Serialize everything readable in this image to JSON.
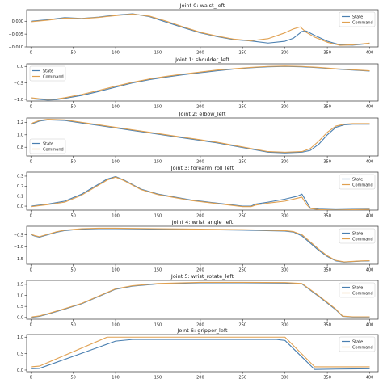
{
  "colors": {
    "state": "#4a7fb0",
    "command": "#e0a050",
    "axes": "#333333"
  },
  "chart_data": [
    {
      "type": "line",
      "title": "Joint 0: waist_left",
      "legend": "top-right",
      "xlim": [
        -5,
        410
      ],
      "ylim": [
        -0.01,
        0.0045
      ],
      "xticks": [
        0,
        50,
        100,
        150,
        200,
        250,
        300,
        350,
        400
      ],
      "xtick_labels": [
        "0",
        "50",
        "100",
        "150",
        "200",
        "250",
        "300",
        "350",
        "400"
      ],
      "yticks": [
        0.0,
        -0.005,
        -0.01
      ],
      "ytick_labels": [
        "0.000",
        "−0.005",
        "−0.010"
      ],
      "series": [
        {
          "name": "State",
          "x": [
            0,
            20,
            40,
            60,
            80,
            100,
            120,
            140,
            160,
            180,
            200,
            220,
            240,
            260,
            280,
            300,
            310,
            320,
            325,
            335,
            350,
            365,
            380,
            400
          ],
          "y": [
            0.0,
            0.0006,
            0.0014,
            0.0011,
            0.0016,
            0.0024,
            0.0029,
            0.0018,
            -0.0004,
            -0.0025,
            -0.0045,
            -0.006,
            -0.0072,
            -0.0077,
            -0.0085,
            -0.0078,
            -0.0066,
            -0.004,
            -0.0038,
            -0.0055,
            -0.0078,
            -0.0092,
            -0.0093,
            -0.0087
          ]
        },
        {
          "name": "Command",
          "x": [
            0,
            20,
            40,
            60,
            80,
            100,
            120,
            140,
            160,
            180,
            200,
            220,
            240,
            260,
            280,
            300,
            310,
            318,
            325,
            335,
            350,
            365,
            380,
            400
          ],
          "y": [
            -0.0002,
            0.0004,
            0.0012,
            0.001,
            0.0015,
            0.0022,
            0.0028,
            0.002,
            0.0,
            -0.0022,
            -0.0043,
            -0.0058,
            -0.007,
            -0.0076,
            -0.0068,
            -0.0045,
            -0.003,
            -0.0022,
            -0.0043,
            -0.0062,
            -0.0082,
            -0.0094,
            -0.0092,
            -0.0085
          ]
        }
      ]
    },
    {
      "type": "line",
      "title": "Joint 1: shoulder_left",
      "legend": "top-left",
      "xlim": [
        -5,
        410
      ],
      "ylim": [
        -1.05,
        0.08
      ],
      "xticks": [
        0,
        50,
        100,
        150,
        200,
        250,
        300,
        350,
        400
      ],
      "xtick_labels": [
        "0",
        "50",
        "100",
        "150",
        "200",
        "250",
        "300",
        "350",
        "400"
      ],
      "yticks": [
        0.0,
        -0.5,
        -1.0
      ],
      "ytick_labels": [
        "0.0",
        "−0.5",
        "−1.0"
      ],
      "series": [
        {
          "name": "State",
          "x": [
            0,
            10,
            20,
            30,
            40,
            60,
            80,
            100,
            120,
            140,
            160,
            180,
            200,
            220,
            240,
            260,
            280,
            300,
            320,
            340,
            360,
            380,
            400
          ],
          "y": [
            -0.98,
            -1.0,
            -1.02,
            -1.01,
            -0.97,
            -0.88,
            -0.76,
            -0.63,
            -0.5,
            -0.4,
            -0.32,
            -0.25,
            -0.19,
            -0.13,
            -0.08,
            -0.04,
            -0.01,
            0.0,
            -0.01,
            -0.04,
            -0.08,
            -0.11,
            -0.14
          ]
        },
        {
          "name": "Command",
          "x": [
            0,
            10,
            20,
            30,
            40,
            60,
            80,
            100,
            120,
            140,
            160,
            180,
            200,
            220,
            240,
            260,
            280,
            300,
            320,
            340,
            360,
            380,
            400
          ],
          "y": [
            -0.95,
            -0.98,
            -1.0,
            -0.99,
            -0.95,
            -0.85,
            -0.73,
            -0.6,
            -0.48,
            -0.38,
            -0.3,
            -0.23,
            -0.17,
            -0.11,
            -0.07,
            -0.03,
            0.0,
            0.01,
            0.0,
            -0.03,
            -0.07,
            -0.1,
            -0.13
          ]
        }
      ]
    },
    {
      "type": "line",
      "title": "Joint 2: elbow_left",
      "legend": "bottom-left",
      "xlim": [
        -5,
        410
      ],
      "ylim": [
        0.66,
        1.27
      ],
      "xticks": [
        0,
        50,
        100,
        150,
        200,
        250,
        300,
        350,
        400
      ],
      "xtick_labels": [
        "0",
        "50",
        "100",
        "150",
        "200",
        "250",
        "300",
        "350",
        "400"
      ],
      "yticks": [
        1.2,
        1.0,
        0.8
      ],
      "ytick_labels": [
        "1.2",
        "1.0",
        "0.8"
      ],
      "series": [
        {
          "name": "State",
          "x": [
            0,
            10,
            20,
            40,
            60,
            80,
            100,
            120,
            140,
            160,
            180,
            200,
            220,
            240,
            260,
            280,
            300,
            320,
            330,
            340,
            350,
            360,
            370,
            380,
            400
          ],
          "y": [
            1.17,
            1.22,
            1.24,
            1.23,
            1.19,
            1.15,
            1.11,
            1.07,
            1.03,
            0.99,
            0.95,
            0.91,
            0.87,
            0.82,
            0.77,
            0.72,
            0.71,
            0.72,
            0.75,
            0.85,
            1.0,
            1.12,
            1.16,
            1.17,
            1.17
          ]
        },
        {
          "name": "Command",
          "x": [
            0,
            10,
            20,
            40,
            60,
            80,
            100,
            120,
            140,
            160,
            180,
            200,
            220,
            240,
            260,
            280,
            300,
            320,
            330,
            340,
            350,
            360,
            370,
            380,
            400
          ],
          "y": [
            1.18,
            1.23,
            1.25,
            1.24,
            1.2,
            1.16,
            1.12,
            1.08,
            1.04,
            1.0,
            0.96,
            0.92,
            0.88,
            0.83,
            0.78,
            0.73,
            0.72,
            0.73,
            0.78,
            0.9,
            1.04,
            1.14,
            1.17,
            1.18,
            1.18
          ]
        }
      ]
    },
    {
      "type": "line",
      "title": "Joint 3: forearm_roll_left",
      "legend": "top-right",
      "xlim": [
        -5,
        410
      ],
      "ylim": [
        -0.04,
        0.34
      ],
      "xticks": [
        0,
        50,
        100,
        150,
        200,
        250,
        300,
        350,
        400
      ],
      "xtick_labels": [
        "0",
        "50",
        "100",
        "150",
        "200",
        "250",
        "300",
        "350",
        "400"
      ],
      "yticks": [
        0.3,
        0.2,
        0.1,
        0.0
      ],
      "ytick_labels": [
        "0.3",
        "0.2",
        "0.1",
        "0.0"
      ],
      "series": [
        {
          "name": "State",
          "x": [
            0,
            10,
            20,
            40,
            60,
            80,
            90,
            100,
            110,
            130,
            150,
            170,
            190,
            210,
            230,
            250,
            260,
            265,
            280,
            300,
            315,
            320,
            325,
            330,
            340,
            360,
            380,
            400
          ],
          "y": [
            0.0,
            0.01,
            0.02,
            0.05,
            0.12,
            0.22,
            0.27,
            0.295,
            0.26,
            0.17,
            0.12,
            0.09,
            0.06,
            0.04,
            0.02,
            0.0,
            0.0,
            0.02,
            0.04,
            0.07,
            0.1,
            0.12,
            0.05,
            -0.02,
            -0.03,
            -0.035,
            -0.032,
            -0.03
          ]
        },
        {
          "name": "Command",
          "x": [
            0,
            10,
            20,
            40,
            60,
            80,
            90,
            100,
            110,
            130,
            150,
            170,
            190,
            210,
            230,
            250,
            260,
            265,
            280,
            300,
            315,
            320,
            325,
            330,
            340,
            360,
            380,
            400
          ],
          "y": [
            -0.005,
            0.005,
            0.015,
            0.04,
            0.11,
            0.21,
            0.26,
            0.29,
            0.255,
            0.165,
            0.115,
            0.085,
            0.055,
            0.035,
            0.015,
            -0.005,
            -0.005,
            0.01,
            0.03,
            0.05,
            0.08,
            0.09,
            0.02,
            -0.025,
            -0.035,
            -0.04,
            -0.036,
            -0.033
          ]
        }
      ]
    },
    {
      "type": "line",
      "title": "Joint 4: wrist_angle_left",
      "legend": "top-right",
      "xlim": [
        -5,
        410
      ],
      "ylim": [
        -1.72,
        -0.15
      ],
      "xticks": [
        0,
        50,
        100,
        150,
        200,
        250,
        300,
        350,
        400
      ],
      "xtick_labels": [
        "0",
        "50",
        "100",
        "150",
        "200",
        "250",
        "300",
        "350",
        "400"
      ],
      "yticks": [
        -0.5,
        -1.0,
        -1.5
      ],
      "ytick_labels": [
        "−0.5",
        "−1.0",
        "−1.5"
      ],
      "series": [
        {
          "name": "State",
          "x": [
            0,
            5,
            10,
            15,
            20,
            30,
            40,
            50,
            60,
            80,
            100,
            150,
            200,
            250,
            300,
            310,
            320,
            330,
            340,
            350,
            360,
            370,
            380,
            390,
            400
          ],
          "y": [
            -0.5,
            -0.56,
            -0.6,
            -0.55,
            -0.5,
            -0.4,
            -0.33,
            -0.3,
            -0.27,
            -0.25,
            -0.25,
            -0.27,
            -0.29,
            -0.31,
            -0.35,
            -0.39,
            -0.55,
            -0.85,
            -1.15,
            -1.4,
            -1.58,
            -1.63,
            -1.61,
            -1.59,
            -1.58
          ]
        },
        {
          "name": "Command",
          "x": [
            0,
            5,
            10,
            15,
            20,
            30,
            40,
            50,
            60,
            80,
            100,
            150,
            200,
            250,
            300,
            310,
            320,
            330,
            340,
            350,
            360,
            370,
            380,
            390,
            400
          ],
          "y": [
            -0.48,
            -0.54,
            -0.58,
            -0.53,
            -0.48,
            -0.38,
            -0.31,
            -0.28,
            -0.25,
            -0.23,
            -0.23,
            -0.25,
            -0.27,
            -0.29,
            -0.33,
            -0.37,
            -0.5,
            -0.8,
            -1.1,
            -1.37,
            -1.56,
            -1.62,
            -1.6,
            -1.58,
            -1.57
          ]
        }
      ]
    },
    {
      "type": "line",
      "title": "Joint 5: wrist_rotate_left",
      "legend": "top-right",
      "xlim": [
        -5,
        410
      ],
      "ylim": [
        -0.08,
        1.68
      ],
      "xticks": [
        0,
        50,
        100,
        150,
        200,
        250,
        300,
        350,
        400
      ],
      "xtick_labels": [
        "0",
        "50",
        "100",
        "150",
        "200",
        "250",
        "300",
        "350",
        "400"
      ],
      "yticks": [
        1.5,
        1.0,
        0.5,
        0.0
      ],
      "ytick_labels": [
        "1.5",
        "1.0",
        "0.5",
        "0.0"
      ],
      "series": [
        {
          "name": "State",
          "x": [
            0,
            10,
            20,
            40,
            60,
            80,
            100,
            120,
            150,
            200,
            250,
            300,
            320,
            340,
            360,
            368,
            380,
            400
          ],
          "y": [
            0.0,
            0.05,
            0.15,
            0.38,
            0.62,
            0.95,
            1.28,
            1.42,
            1.52,
            1.57,
            1.57,
            1.56,
            1.52,
            0.95,
            0.35,
            0.05,
            0.02,
            0.02
          ]
        },
        {
          "name": "Command",
          "x": [
            0,
            10,
            20,
            40,
            60,
            80,
            100,
            120,
            150,
            200,
            250,
            300,
            320,
            340,
            360,
            368,
            380,
            400
          ],
          "y": [
            0.02,
            0.07,
            0.17,
            0.4,
            0.64,
            0.97,
            1.3,
            1.44,
            1.54,
            1.59,
            1.59,
            1.58,
            1.54,
            0.98,
            0.38,
            0.06,
            0.03,
            0.03
          ]
        }
      ]
    },
    {
      "type": "line",
      "title": "Joint 6: gripper_left",
      "legend": "top-right",
      "xlim": [
        -5,
        410
      ],
      "ylim": [
        -0.05,
        1.08
      ],
      "xticks": [
        0,
        50,
        100,
        150,
        200,
        250,
        300,
        350,
        400
      ],
      "xtick_labels": [
        "0",
        "50",
        "100",
        "150",
        "200",
        "250",
        "300",
        "350",
        "400"
      ],
      "yticks": [
        1.0,
        0.5,
        0.0
      ],
      "ytick_labels": [
        "1.0",
        "0.5",
        "0.0"
      ],
      "series": [
        {
          "name": "State",
          "x": [
            0,
            10,
            100,
            120,
            290,
            300,
            335,
            360,
            400
          ],
          "y": [
            0.04,
            0.05,
            0.88,
            0.93,
            0.93,
            0.9,
            0.02,
            0.03,
            0.04
          ]
        },
        {
          "name": "Command",
          "x": [
            0,
            10,
            90,
            100,
            290,
            300,
            335,
            360,
            400
          ],
          "y": [
            0.1,
            0.12,
            1.0,
            1.0,
            1.0,
            1.0,
            0.1,
            0.1,
            0.1
          ]
        }
      ]
    }
  ]
}
